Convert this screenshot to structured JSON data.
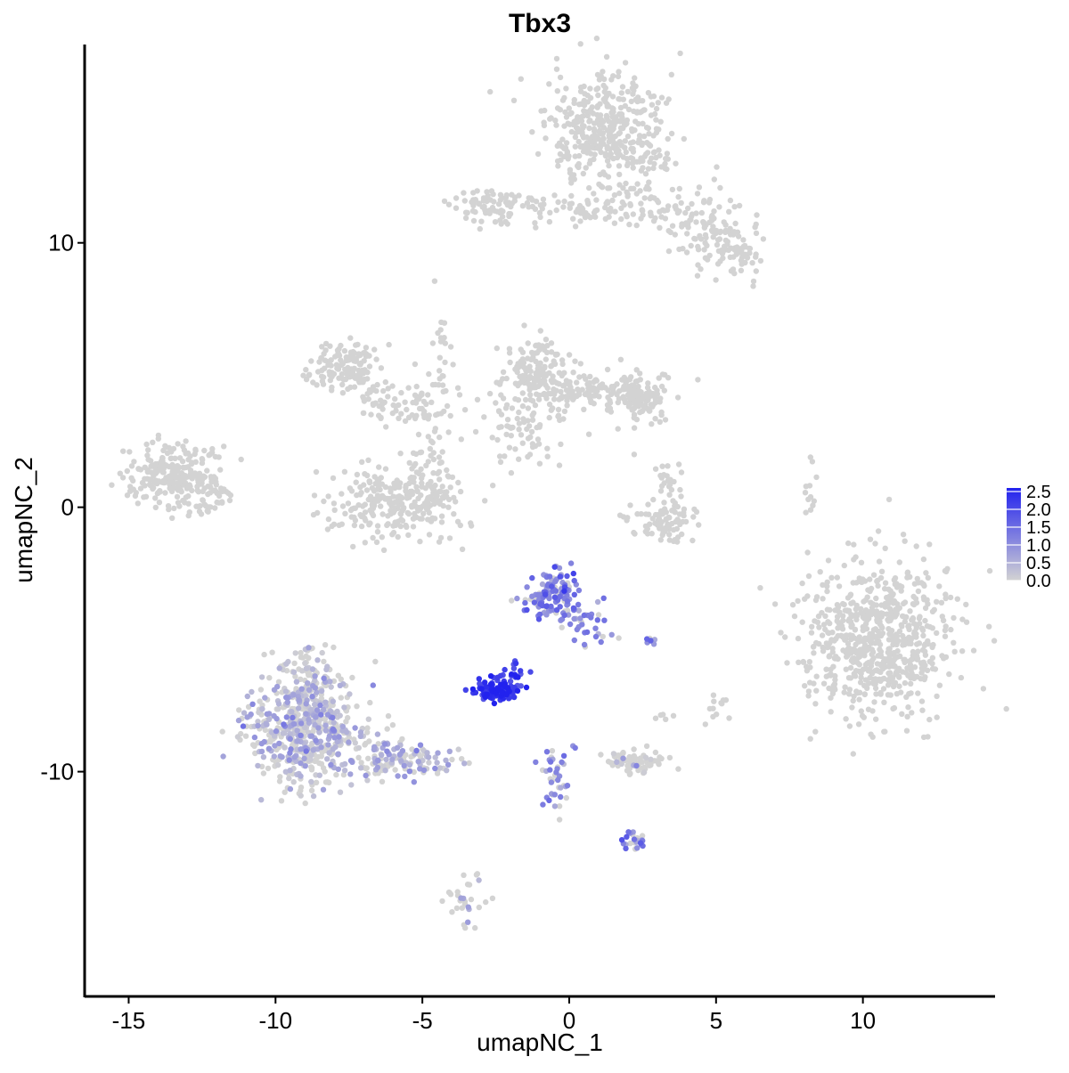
{
  "chart_data": {
    "type": "scatter",
    "title": "Tbx3",
    "xlabel": "umapNC_1",
    "ylabel": "umapNC_2",
    "xlim": [
      -16.5,
      14.5
    ],
    "ylim": [
      -18.5,
      17.5
    ],
    "x_ticks": [
      -15,
      -10,
      -5,
      0,
      5,
      10
    ],
    "x_tick_labels": [
      "-15",
      "-10",
      "-5",
      "0",
      "5",
      "10"
    ],
    "y_ticks": [
      -10,
      0,
      10
    ],
    "y_tick_labels": [
      "-10",
      "0",
      "10"
    ],
    "grid": false,
    "legend": {
      "placement": "right",
      "type": "colorbar",
      "range": [
        0,
        2.6
      ],
      "ticks": [
        0,
        0.5,
        1.0,
        1.5,
        2.0,
        2.5
      ],
      "tick_labels": [
        "0.0",
        "0.5",
        "1.0",
        "1.5",
        "2.0",
        "2.5"
      ],
      "low_color": "#d3d3d3",
      "high_color": "#2222ee"
    },
    "background_color": "#d3d3d3",
    "clusters": [
      {
        "cx": 1.3,
        "cy": 14.1,
        "sx": 1.0,
        "sy": 1.1,
        "n": 420,
        "expr": 0,
        "expr_fraction": 0
      },
      {
        "cx": -2.5,
        "cy": 11.4,
        "sx": 0.8,
        "sy": 0.35,
        "n": 80,
        "expr": 0,
        "expr_fraction": 0
      },
      {
        "cx": 0.3,
        "cy": 11.2,
        "sx": 1.2,
        "sy": 0.3,
        "n": 50,
        "expr": 0,
        "expr_fraction": 0
      },
      {
        "cx": 2.8,
        "cy": 11.4,
        "sx": 1.0,
        "sy": 0.5,
        "n": 70,
        "expr": 0,
        "expr_fraction": 0
      },
      {
        "cx": 4.5,
        "cy": 10.5,
        "sx": 0.6,
        "sy": 0.6,
        "n": 80,
        "expr": 0,
        "expr_fraction": 0
      },
      {
        "cx": 5.8,
        "cy": 9.6,
        "sx": 0.35,
        "sy": 0.5,
        "n": 60,
        "expr": 0,
        "expr_fraction": 0
      },
      {
        "cx": -7.5,
        "cy": 5.3,
        "sx": 0.55,
        "sy": 0.5,
        "n": 140,
        "expr": 0,
        "expr_fraction": 0
      },
      {
        "cx": -5.5,
        "cy": 4.0,
        "sx": 0.9,
        "sy": 0.5,
        "n": 80,
        "expr": 0,
        "expr_fraction": 0
      },
      {
        "cx": -4.3,
        "cy": 6.0,
        "sx": 0.2,
        "sy": 1.1,
        "n": 25,
        "expr": 0,
        "expr_fraction": 0
      },
      {
        "cx": -6.0,
        "cy": 0.2,
        "sx": 1.1,
        "sy": 0.7,
        "n": 260,
        "expr": 0,
        "expr_fraction": 0
      },
      {
        "cx": -4.8,
        "cy": 1.5,
        "sx": 0.4,
        "sy": 0.7,
        "n": 50,
        "expr": 0,
        "expr_fraction": 0
      },
      {
        "cx": -1.1,
        "cy": 5.0,
        "sx": 0.6,
        "sy": 0.8,
        "n": 160,
        "expr": 0,
        "expr_fraction": 0
      },
      {
        "cx": 1.0,
        "cy": 4.4,
        "sx": 1.2,
        "sy": 0.4,
        "n": 140,
        "expr": 0,
        "expr_fraction": 0
      },
      {
        "cx": 2.4,
        "cy": 4.0,
        "sx": 0.5,
        "sy": 0.5,
        "n": 90,
        "expr": 0,
        "expr_fraction": 0
      },
      {
        "cx": -1.5,
        "cy": 3.0,
        "sx": 0.6,
        "sy": 0.6,
        "n": 60,
        "expr": 0,
        "expr_fraction": 0
      },
      {
        "cx": -13.5,
        "cy": 1.2,
        "sx": 0.7,
        "sy": 0.6,
        "n": 240,
        "expr": 0,
        "expr_fraction": 0
      },
      {
        "cx": -12.2,
        "cy": 0.5,
        "sx": 0.4,
        "sy": 0.4,
        "n": 40,
        "expr": 0,
        "expr_fraction": 0
      },
      {
        "cx": 3.2,
        "cy": -0.5,
        "sx": 0.6,
        "sy": 0.4,
        "n": 80,
        "expr": 0,
        "expr_fraction": 0
      },
      {
        "cx": 3.5,
        "cy": 0.8,
        "sx": 0.25,
        "sy": 0.5,
        "n": 25,
        "expr": 0,
        "expr_fraction": 0
      },
      {
        "cx": 10.5,
        "cy": -5.0,
        "sx": 1.3,
        "sy": 1.4,
        "n": 700,
        "expr": 0,
        "expr_fraction": 0
      },
      {
        "cx": 8.2,
        "cy": 0.3,
        "sx": 0.1,
        "sy": 0.5,
        "n": 12,
        "expr": 0,
        "expr_fraction": 0
      },
      {
        "cx": -9.0,
        "cy": -8.5,
        "sx": 1.0,
        "sy": 1.1,
        "n": 550,
        "expr": 0.45,
        "expr_fraction": 0.55
      },
      {
        "cx": -8.8,
        "cy": -6.2,
        "sx": 0.4,
        "sy": 0.6,
        "n": 70,
        "expr": 0.45,
        "expr_fraction": 0.45
      },
      {
        "cx": -5.8,
        "cy": -9.5,
        "sx": 1.0,
        "sy": 0.4,
        "n": 130,
        "expr": 0.5,
        "expr_fraction": 0.5
      },
      {
        "cx": -0.6,
        "cy": -3.4,
        "sx": 0.5,
        "sy": 0.5,
        "n": 130,
        "expr": 1.3,
        "expr_fraction": 0.8
      },
      {
        "cx": 0.6,
        "cy": -4.4,
        "sx": 0.4,
        "sy": 0.5,
        "n": 35,
        "expr": 1.0,
        "expr_fraction": 0.6
      },
      {
        "cx": -2.5,
        "cy": -6.9,
        "sx": 0.35,
        "sy": 0.2,
        "n": 120,
        "expr": 2.3,
        "expr_fraction": 1.0
      },
      {
        "cx": -1.8,
        "cy": -6.3,
        "sx": 0.2,
        "sy": 0.3,
        "n": 20,
        "expr": 2.1,
        "expr_fraction": 1.0
      },
      {
        "cx": 2.2,
        "cy": -9.6,
        "sx": 0.5,
        "sy": 0.2,
        "n": 80,
        "expr": 0.3,
        "expr_fraction": 0.1
      },
      {
        "cx": -0.5,
        "cy": -10.5,
        "sx": 0.3,
        "sy": 0.9,
        "n": 40,
        "expr": 1.0,
        "expr_fraction": 0.5
      },
      {
        "cx": 2.3,
        "cy": -12.6,
        "sx": 0.25,
        "sy": 0.2,
        "n": 25,
        "expr": 1.2,
        "expr_fraction": 0.7
      },
      {
        "cx": 5.0,
        "cy": -7.6,
        "sx": 0.2,
        "sy": 0.3,
        "n": 12,
        "expr": 0,
        "expr_fraction": 0
      },
      {
        "cx": 3.3,
        "cy": -7.9,
        "sx": 0.2,
        "sy": 0.1,
        "n": 5,
        "expr": 0,
        "expr_fraction": 0
      },
      {
        "cx": -3.5,
        "cy": -14.8,
        "sx": 0.3,
        "sy": 0.6,
        "n": 30,
        "expr": 0.5,
        "expr_fraction": 0.2
      },
      {
        "cx": 2.8,
        "cy": -5.0,
        "sx": 0.15,
        "sy": 0.1,
        "n": 6,
        "expr": 1.2,
        "expr_fraction": 0.8
      }
    ]
  }
}
